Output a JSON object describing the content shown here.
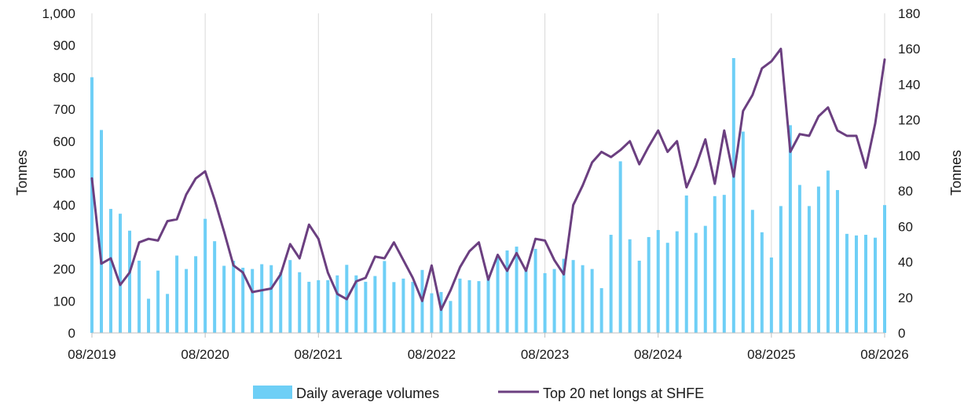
{
  "chart_data": {
    "type": "bar+line",
    "left_axis": {
      "label": "Tonnes",
      "ylim": [
        0,
        1000
      ],
      "ticks": [
        0,
        100,
        200,
        300,
        400,
        500,
        600,
        700,
        800,
        900,
        1000
      ],
      "tick_labels": [
        "0",
        "100",
        "200",
        "300",
        "400",
        "500",
        "600",
        "700",
        "800",
        "900",
        "1,000"
      ]
    },
    "right_axis": {
      "label": "Tonnes",
      "ylim": [
        0,
        180
      ],
      "ticks": [
        0,
        20,
        40,
        60,
        80,
        100,
        120,
        140,
        160,
        180
      ],
      "tick_labels": [
        "0",
        "20",
        "40",
        "60",
        "80",
        "100",
        "120",
        "140",
        "160",
        "180"
      ]
    },
    "x_axis": {
      "tick_labels": [
        "08/2019",
        "08/2020",
        "08/2021",
        "08/2022",
        "08/2023",
        "08/2024",
        "08/2025",
        "08/2026"
      ],
      "start": "08/2019",
      "end": "08/2026"
    },
    "grid": "vertical",
    "legend_position": "bottom",
    "series": [
      {
        "name": "Daily average volumes",
        "type": "bar",
        "axis": "left",
        "color": "#6ecff6",
        "x": [
          "08/2019",
          "09/2019",
          "10/2019",
          "11/2019",
          "12/2019",
          "01/2020",
          "02/2020",
          "03/2020",
          "04/2020",
          "05/2020",
          "06/2020",
          "07/2020",
          "08/2020",
          "09/2020",
          "10/2020",
          "11/2020",
          "12/2020",
          "01/2021",
          "02/2021",
          "03/2021",
          "04/2021",
          "05/2021",
          "06/2021",
          "07/2021",
          "08/2021",
          "09/2021",
          "10/2021",
          "11/2021",
          "12/2021",
          "01/2022",
          "02/2022",
          "03/2022",
          "04/2022",
          "05/2022",
          "06/2022",
          "07/2022",
          "08/2022",
          "09/2022",
          "10/2022",
          "11/2022",
          "12/2022",
          "01/2023",
          "02/2023",
          "03/2023",
          "04/2023",
          "05/2023",
          "06/2023",
          "07/2023",
          "08/2023",
          "09/2023",
          "10/2023",
          "11/2023",
          "12/2023",
          "01/2024",
          "02/2024",
          "03/2024",
          "04/2024",
          "05/2024",
          "06/2024",
          "07/2024",
          "08/2024",
          "09/2024",
          "10/2024",
          "11/2024",
          "12/2024",
          "01/2025",
          "02/2025",
          "03/2025",
          "04/2025",
          "05/2025",
          "06/2025",
          "07/2025",
          "08/2025",
          "09/2025",
          "10/2025",
          "11/2025",
          "12/2025",
          "01/2026",
          "02/2026",
          "03/2026",
          "04/2026",
          "05/2026",
          "06/2026",
          "07/2026",
          "08/2026"
        ],
        "values": [
          800,
          635,
          388,
          373,
          320,
          226,
          107,
          195,
          122,
          242,
          200,
          240,
          357,
          287,
          210,
          226,
          204,
          200,
          215,
          212,
          190,
          228,
          190,
          160,
          165,
          165,
          180,
          213,
          180,
          160,
          178,
          225,
          159,
          170,
          160,
          197,
          124,
          128,
          100,
          170,
          165,
          162,
          178,
          240,
          258,
          270,
          198,
          263,
          187,
          200,
          232,
          228,
          212,
          200,
          140,
          307,
          537,
          293,
          226,
          300,
          322,
          282,
          318,
          430,
          313,
          335,
          428,
          432,
          860,
          630,
          385,
          315,
          236,
          397,
          650,
          463,
          397,
          458,
          508,
          447,
          310,
          305,
          307,
          298,
          400
        ]
      },
      {
        "name": "Top 20 net longs at SHFE",
        "type": "line",
        "axis": "right",
        "color": "#6b3f80",
        "x": [
          "08/2019",
          "09/2019",
          "10/2019",
          "11/2019",
          "12/2019",
          "01/2020",
          "02/2020",
          "03/2020",
          "04/2020",
          "05/2020",
          "06/2020",
          "07/2020",
          "08/2020",
          "09/2020",
          "10/2020",
          "11/2020",
          "12/2020",
          "01/2021",
          "02/2021",
          "03/2021",
          "04/2021",
          "05/2021",
          "06/2021",
          "07/2021",
          "08/2021",
          "09/2021",
          "10/2021",
          "11/2021",
          "12/2021",
          "01/2022",
          "02/2022",
          "03/2022",
          "04/2022",
          "05/2022",
          "06/2022",
          "07/2022",
          "08/2022",
          "09/2022",
          "10/2022",
          "11/2022",
          "12/2022",
          "01/2023",
          "02/2023",
          "03/2023",
          "04/2023",
          "05/2023",
          "06/2023",
          "07/2023",
          "08/2023",
          "09/2023",
          "10/2023",
          "11/2023",
          "12/2023",
          "01/2024",
          "02/2024",
          "03/2024",
          "04/2024",
          "05/2024",
          "06/2024",
          "07/2024",
          "08/2024",
          "09/2024",
          "10/2024",
          "11/2024",
          "12/2024",
          "01/2025",
          "02/2025",
          "03/2025",
          "04/2025",
          "05/2025",
          "06/2025",
          "07/2025",
          "08/2025",
          "09/2025",
          "10/2025",
          "11/2025",
          "12/2025",
          "01/2026",
          "02/2026",
          "03/2026",
          "04/2026",
          "05/2026",
          "06/2026",
          "07/2026",
          "08/2026"
        ],
        "values": [
          87,
          39,
          42,
          27,
          34,
          51,
          53,
          52,
          63,
          64,
          78,
          87,
          91,
          75,
          57,
          38,
          34,
          23,
          24,
          25,
          33,
          50,
          42,
          61,
          53,
          34,
          22,
          19,
          29,
          31,
          43,
          42,
          51,
          41,
          31,
          18,
          38,
          13,
          24,
          37,
          46,
          51,
          30,
          44,
          35,
          45,
          35,
          53,
          52,
          41,
          33,
          72,
          83,
          96,
          102,
          99,
          103,
          108,
          95,
          105,
          114,
          102,
          108,
          82,
          94,
          109,
          84,
          114,
          88,
          125,
          134,
          149,
          153,
          160,
          102,
          112,
          111,
          122,
          127,
          114,
          111,
          111,
          93,
          118,
          154
        ]
      }
    ],
    "legend": [
      {
        "label": "Daily average volumes",
        "symbol": "bar",
        "color": "#6ecff6"
      },
      {
        "label": "Top 20 net longs at SHFE",
        "symbol": "line",
        "color": "#6b3f80"
      }
    ]
  }
}
